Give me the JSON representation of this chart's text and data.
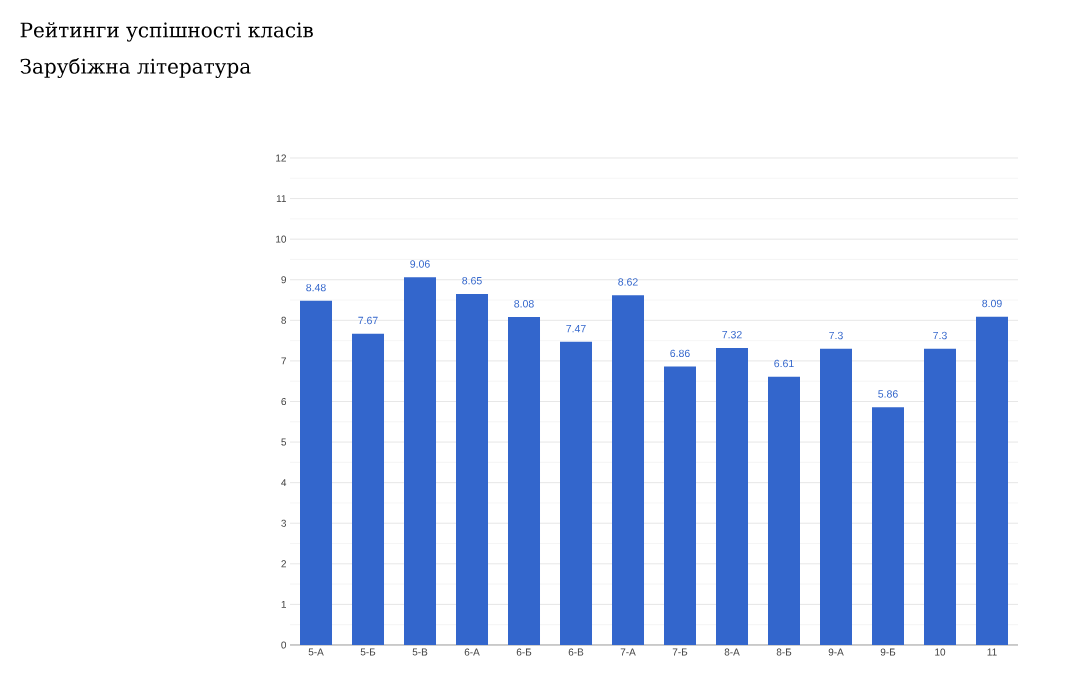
{
  "chart_data": {
    "type": "bar",
    "title": "Рейтинги успішності класів",
    "subtitle": "Зарубіжна література",
    "categories": [
      "5-А",
      "5-Б",
      "5-В",
      "6-А",
      "6-Б",
      "6-В",
      "7-А",
      "7-Б",
      "8-А",
      "8-Б",
      "9-А",
      "9-Б",
      "10",
      "11"
    ],
    "values": [
      8.48,
      7.67,
      9.06,
      8.65,
      8.08,
      7.47,
      8.62,
      6.86,
      7.32,
      6.61,
      7.3,
      5.86,
      7.3,
      8.09
    ],
    "color": "#3366cc",
    "ylim": [
      0,
      12
    ],
    "yticks": [
      0,
      1,
      2,
      3,
      4,
      5,
      6,
      7,
      8,
      9,
      10,
      11,
      12
    ],
    "grid": "y",
    "data_labels": true
  }
}
